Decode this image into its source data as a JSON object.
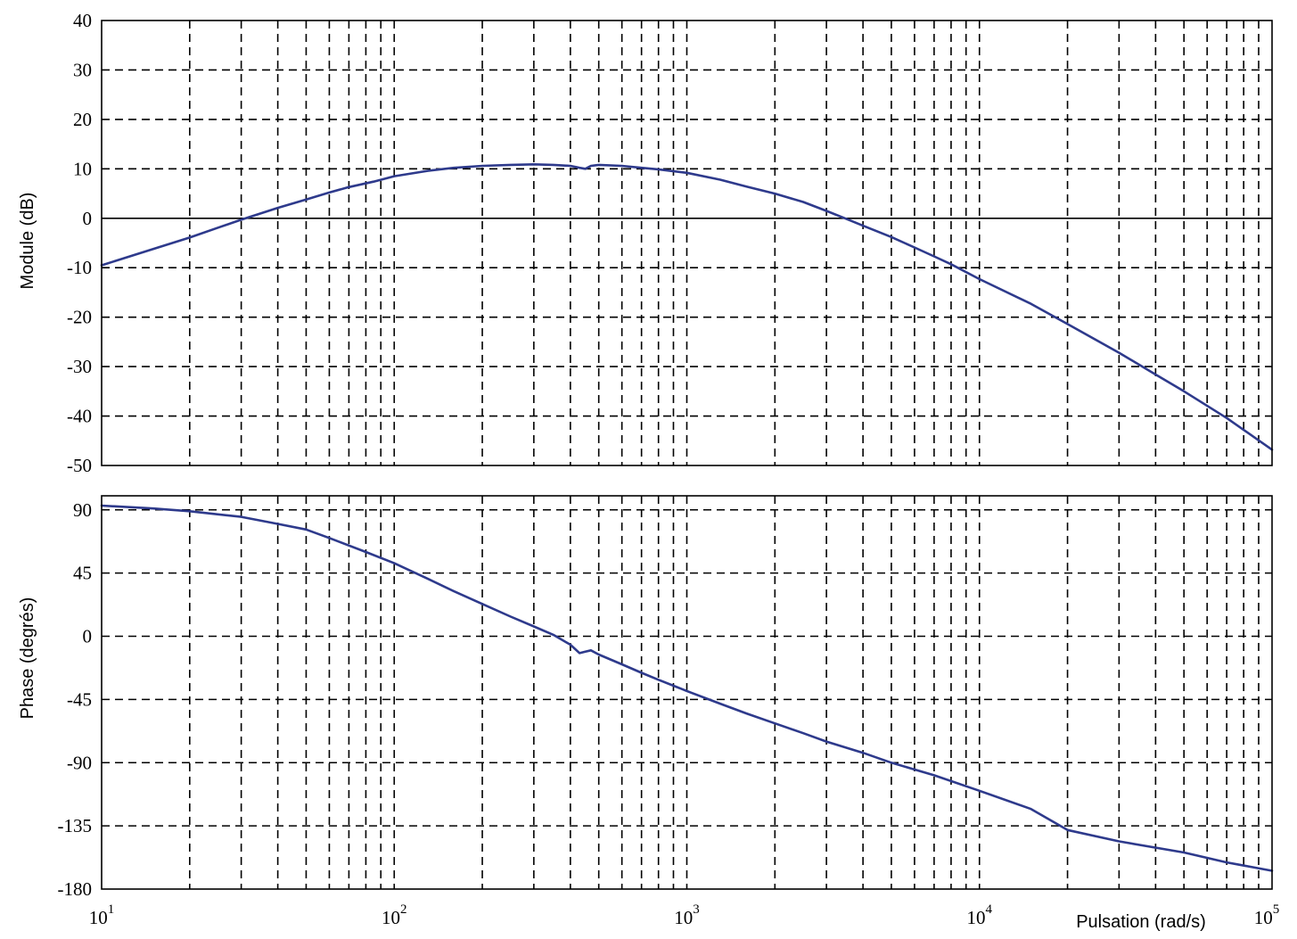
{
  "chart_data": [
    {
      "type": "line",
      "panel": "magnitude",
      "title": "",
      "xlabel": "",
      "ylabel": "Module  (dB)",
      "xscale": "log",
      "xlim": [
        10,
        100000
      ],
      "ylim": [
        -50,
        40
      ],
      "y_ticks": [
        40,
        30,
        20,
        10,
        0,
        -10,
        -20,
        -30,
        -40,
        -50
      ],
      "y_tick_labels": [
        "40",
        "30",
        "20",
        "10",
        "0",
        "-10",
        "-20",
        "-30",
        "-40",
        "-50"
      ],
      "grid": true,
      "color": "#2E3A8C",
      "series": [
        {
          "x": [
            10,
            15,
            20,
            25,
            30,
            40,
            50,
            60,
            70,
            85,
            100,
            130,
            160,
            200,
            250,
            300,
            350,
            400,
            430,
            450,
            470,
            500,
            600,
            700,
            800,
            1000,
            1300,
            1600,
            2000,
            2500,
            3000,
            3500,
            4000,
            5000,
            6000,
            7000,
            8000,
            10000,
            15000,
            20000,
            30000,
            40000,
            50000,
            70000,
            100000
          ],
          "y": [
            -9.5,
            -6.2,
            -3.9,
            -1.9,
            -0.3,
            2.1,
            3.8,
            5.2,
            6.3,
            7.4,
            8.5,
            9.6,
            10.2,
            10.6,
            10.8,
            10.9,
            10.8,
            10.6,
            10.2,
            10.0,
            10.6,
            10.8,
            10.6,
            10.2,
            9.9,
            9.2,
            7.8,
            6.4,
            5.0,
            3.3,
            1.5,
            -0.1,
            -1.5,
            -3.8,
            -5.9,
            -7.7,
            -9.3,
            -12.3,
            -17.3,
            -21.4,
            -27.2,
            -31.6,
            -35.0,
            -40.4,
            -46.8
          ]
        }
      ]
    },
    {
      "type": "line",
      "panel": "phase",
      "title": "",
      "xlabel": "Pulsation  (rad/s)",
      "ylabel": "Phase (degrés)",
      "xscale": "log",
      "xlim": [
        10,
        100000
      ],
      "ylim": [
        -180,
        100
      ],
      "y_ticks": [
        90,
        45,
        0,
        -45,
        -90,
        -135,
        -180
      ],
      "y_tick_labels": [
        "90",
        "45",
        "0",
        "-45",
        "-90",
        "-135",
        "-180"
      ],
      "x_tick_labels": [
        {
          "base": "10",
          "exp": "1"
        },
        {
          "base": "10",
          "exp": "2"
        },
        {
          "base": "10",
          "exp": "3"
        },
        {
          "base": "10",
          "exp": "4"
        },
        {
          "base": "10",
          "exp": "5"
        }
      ],
      "grid": true,
      "color": "#2E3A8C",
      "series": [
        {
          "x": [
            10,
            15,
            20,
            30,
            40,
            50,
            60,
            80,
            100,
            130,
            160,
            200,
            250,
            300,
            350,
            400,
            430,
            450,
            470,
            500,
            600,
            700,
            800,
            1000,
            1300,
            1600,
            2000,
            2500,
            3000,
            4000,
            5000,
            7000,
            10000,
            15000,
            20000,
            30000,
            50000,
            70000,
            100000
          ],
          "y": [
            93,
            91,
            89,
            85,
            80,
            76,
            70,
            60,
            52,
            41,
            32,
            23,
            14,
            7,
            1,
            -6,
            -12,
            -11,
            -10,
            -13,
            -20,
            -26,
            -31,
            -39,
            -48,
            -55,
            -62,
            -69,
            -75,
            -83,
            -90,
            -99,
            -110,
            -123,
            -138,
            -146,
            -154,
            -161,
            -167
          ]
        }
      ]
    }
  ]
}
